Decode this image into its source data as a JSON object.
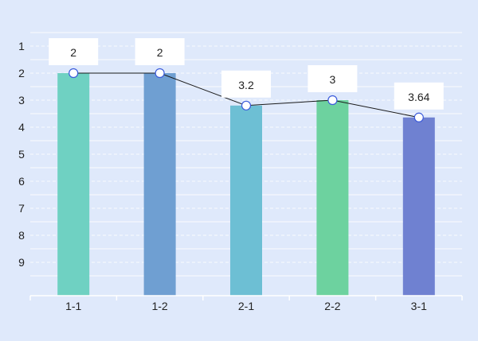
{
  "chart_data": {
    "type": "bar",
    "categories": [
      "1-1",
      "1-2",
      "2-1",
      "2-2",
      "3-1"
    ],
    "values": [
      2,
      2,
      3.2,
      3,
      3.64
    ],
    "bar_colors": [
      "#6fd1c2",
      "#6f9fd2",
      "#6dbfd4",
      "#6dd29f",
      "#6f81d1"
    ],
    "line": {
      "values": [
        2,
        2,
        3.2,
        3,
        3.64
      ],
      "color": "#1a1a1a",
      "marker_fill": "#ffffff",
      "marker_stroke": "#3b5bdb"
    },
    "data_labels": [
      "2",
      "2",
      "3.2",
      "3",
      "3.64"
    ],
    "y_axis": {
      "ticks": [
        "1",
        "2",
        "3",
        "4",
        "5",
        "6",
        "7",
        "8",
        "9"
      ],
      "inverted": true,
      "range": [
        0.5,
        9.5
      ]
    },
    "grid": true,
    "background": "#dfe9fb"
  }
}
